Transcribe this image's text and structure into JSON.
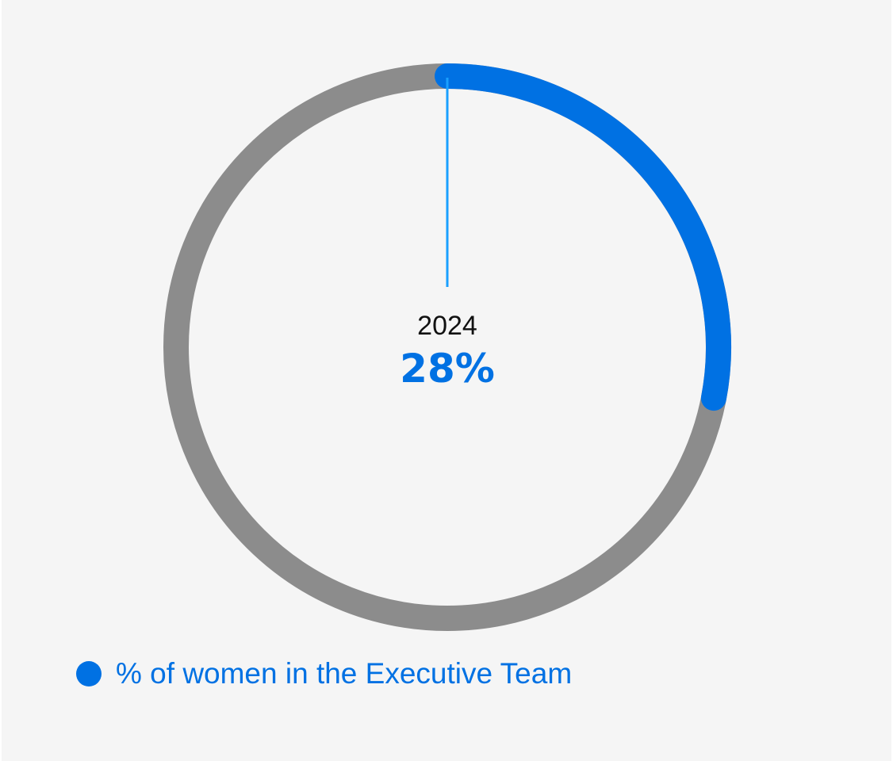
{
  "chart_data": {
    "type": "pie",
    "variant": "donut",
    "center_label": "2024",
    "value_label": "28%",
    "value": 28,
    "max": 100,
    "series": [
      {
        "name": "% of women in the Executive Team",
        "value": 28
      }
    ],
    "legend_placement": "bottom-left"
  },
  "colors": {
    "accent": "#0071e3",
    "track": "#8c8c8c",
    "pointer": "#1aa0ff",
    "background": "#f5f5f5",
    "text": "#111111"
  }
}
